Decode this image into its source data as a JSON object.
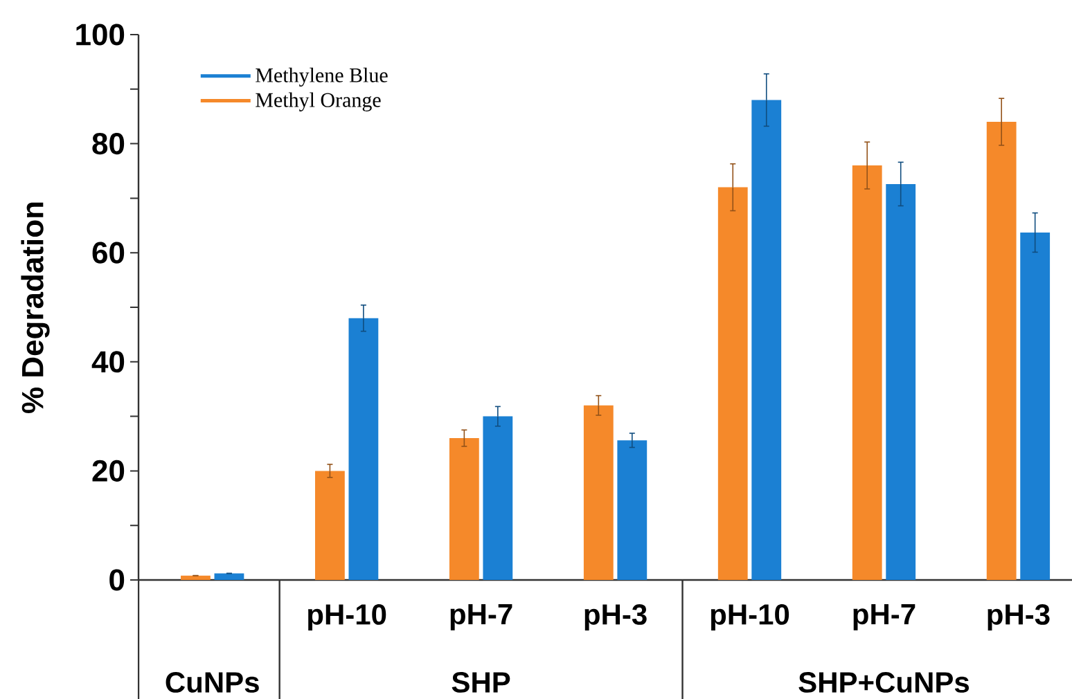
{
  "chart_data": {
    "type": "bar",
    "ylabel": "% Degradation",
    "categories": [
      null,
      "pH-10",
      "pH-7",
      "pH-3",
      "pH-10",
      "pH-7",
      "pH-3"
    ],
    "series": [
      {
        "name": "Methyl Orange",
        "color": "#f5892a",
        "values": [
          0.8,
          20,
          26,
          32,
          72,
          76,
          84
        ],
        "errors": [
          null,
          1.2,
          1.5,
          1.8,
          4.3,
          4.3,
          4.3
        ]
      },
      {
        "name": "Methylene Blue",
        "color": "#1b80d3",
        "values": [
          1.2,
          48,
          30,
          25.6,
          88,
          72.6,
          63.7
        ],
        "errors": [
          null,
          2.4,
          1.8,
          1.3,
          4.8,
          4,
          3.6
        ]
      }
    ],
    "ylim": [
      0,
      100
    ],
    "yticks": [
      0,
      {
        "value": 10,
        "label": null
      },
      20,
      {
        "value": 30,
        "label": null
      },
      40,
      {
        "value": 50,
        "label": null
      },
      60,
      {
        "value": 70,
        "label": null
      },
      80,
      {
        "value": 90,
        "label": null
      },
      100
    ],
    "legend": "top left",
    "annotations": [
      "CuNPs",
      "SHP",
      "SHP+CuNPs"
    ]
  }
}
